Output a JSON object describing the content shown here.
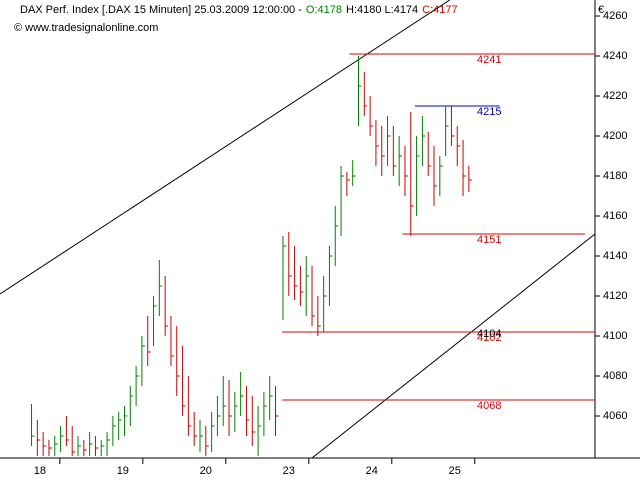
{
  "chart_data": {
    "type": "ohlc",
    "title_parts": [
      {
        "text": "DAX Perf. Index [.DAX  15 Minuten] 25.03.2009 12:00:00 -",
        "color": "#000000"
      },
      {
        "text": "O:4178",
        "color": "#008000"
      },
      {
        "text": "H:4180 L:4174",
        "color": "#000000"
      },
      {
        "text": "C:4177",
        "color": "#e00000"
      }
    ],
    "subtitle": "© www.tradesignalonline.com",
    "y_unit": "€",
    "ylim": [
      4039,
      4268
    ],
    "yticks": [
      4060,
      4080,
      4100,
      4120,
      4140,
      4160,
      4180,
      4200,
      4220,
      4240,
      4260
    ],
    "xlim": [
      -0.48,
      6.69
    ],
    "xticks": [
      {
        "value": 0,
        "label": "18"
      },
      {
        "value": 1,
        "label": "19"
      },
      {
        "value": 2,
        "label": "20"
      },
      {
        "value": 3,
        "label": "23"
      },
      {
        "value": 4,
        "label": "24"
      },
      {
        "value": 5,
        "label": "25"
      }
    ],
    "up_color": "#008000",
    "down_color": "#d00000",
    "x": [
      -0.1,
      -0.03,
      0.04,
      0.11,
      0.18,
      0.25,
      0.32,
      0.39,
      0.46,
      0.53,
      0.6,
      0.67,
      0.74,
      0.81,
      0.88,
      0.95,
      1.02,
      1.09,
      1.16,
      1.23,
      1.3,
      1.37,
      1.44,
      1.51,
      1.58,
      1.65,
      1.72,
      1.79,
      1.86,
      1.93,
      2.0,
      2.07,
      2.14,
      2.21,
      2.28,
      2.35,
      2.42,
      2.49,
      2.56,
      2.63,
      2.7,
      2.77,
      2.84,
      2.93,
      3.0,
      3.07,
      3.14,
      3.21,
      3.28,
      3.35,
      3.42,
      3.49,
      3.56,
      3.63,
      3.7,
      3.77,
      3.84,
      3.91,
      3.98,
      4.05,
      4.12,
      4.19,
      4.26,
      4.33,
      4.4,
      4.47,
      4.54,
      4.61,
      4.68,
      4.75,
      4.82,
      4.89,
      4.96,
      5.03,
      5.1,
      5.17
    ],
    "high": [
      4066,
      4058,
      4052,
      4048,
      4050,
      4055,
      4060,
      4055,
      4050,
      4048,
      4052,
      4050,
      4048,
      4052,
      4060,
      4062,
      4065,
      4075,
      4085,
      4100,
      4110,
      4120,
      4138,
      4130,
      4110,
      4105,
      4095,
      4080,
      4062,
      4058,
      4055,
      4062,
      4070,
      4080,
      4078,
      4072,
      4082,
      4075,
      4070,
      4065,
      4072,
      4080,
      4075,
      4150,
      4152,
      4145,
      4135,
      4140,
      4135,
      4120,
      4130,
      4145,
      4165,
      4185,
      4182,
      4188,
      4240,
      4232,
      4220,
      4208,
      4205,
      4210,
      4205,
      4200,
      4195,
      4212,
      4200,
      4210,
      4202,
      4195,
      4190,
      4215,
      4215,
      4205,
      4198,
      4185
    ],
    "low": [
      4045,
      4040,
      4040,
      4040,
      4040,
      4042,
      4045,
      4040,
      4040,
      4040,
      4040,
      4040,
      4040,
      4040,
      4045,
      4048,
      4050,
      4055,
      4065,
      4075,
      4085,
      4095,
      4110,
      4100,
      4085,
      4070,
      4060,
      4050,
      4045,
      4042,
      4040,
      4042,
      4050,
      4055,
      4050,
      4052,
      4060,
      4050,
      4045,
      4040,
      4050,
      4058,
      4050,
      4108,
      4120,
      4118,
      4115,
      4110,
      4105,
      4100,
      4102,
      4115,
      4135,
      4150,
      4170,
      4175,
      4205,
      4210,
      4200,
      4185,
      4180,
      4185,
      4180,
      4175,
      4170,
      4150,
      4160,
      4185,
      4180,
      4165,
      4170,
      4190,
      4195,
      4185,
      4170,
      4172
    ],
    "close": [
      4050,
      4048,
      4045,
      4044,
      4046,
      4050,
      4048,
      4042,
      4045,
      4043,
      4046,
      4044,
      4045,
      4048,
      4055,
      4058,
      4060,
      4070,
      4080,
      4095,
      4092,
      4115,
      4125,
      4105,
      4090,
      4080,
      4065,
      4055,
      4050,
      4050,
      4045,
      4055,
      4060,
      4065,
      4060,
      4065,
      4070,
      4058,
      4052,
      4055,
      4065,
      4070,
      4060,
      4145,
      4130,
      4125,
      4122,
      4130,
      4110,
      4105,
      4120,
      4140,
      4155,
      4180,
      4178,
      4180,
      4225,
      4215,
      4205,
      4195,
      4190,
      4200,
      4185,
      4190,
      4180,
      4165,
      4190,
      4200,
      4185,
      4175,
      4185,
      4205,
      4200,
      4195,
      4180,
      4178
    ],
    "levels": [
      {
        "value": 4241,
        "color": "#e00000",
        "x": [
          3.73,
          6.69
        ]
      },
      {
        "value": 4215,
        "color": "#0000cc",
        "x": [
          4.52,
          5.54
        ]
      },
      {
        "value": 4151,
        "color": "#e00000",
        "x": [
          4.37,
          6.57
        ]
      },
      {
        "value": 4102,
        "color": "#e00000",
        "x": [
          2.92,
          6.69
        ]
      },
      {
        "value": 4104,
        "color": "#000000"
      },
      {
        "value": 4068,
        "color": "#e00000",
        "x": [
          2.92,
          6.69
        ]
      }
    ],
    "trendlines": [
      {
        "x": [
          -0.48,
          4.94
        ],
        "y": [
          4121,
          4268
        ]
      },
      {
        "x": [
          3.28,
          6.69
        ],
        "y": [
          4039,
          4151
        ]
      }
    ]
  }
}
